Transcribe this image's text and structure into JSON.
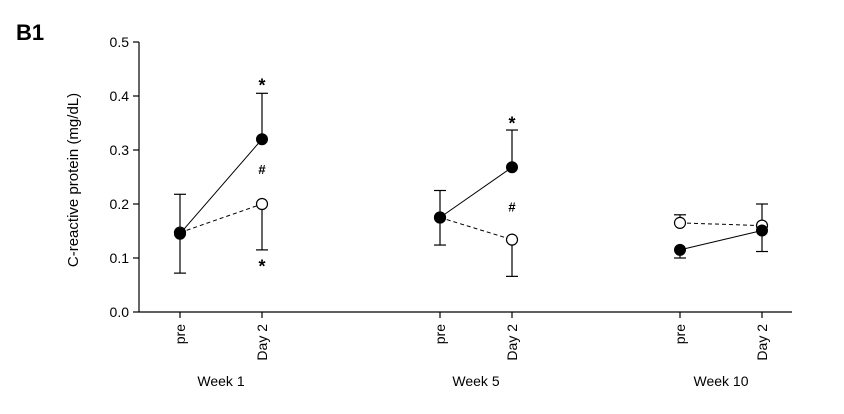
{
  "panel_label": "B1",
  "chart_data": {
    "type": "line",
    "ylabel": "C-reactive protein (mg/dL)",
    "ylim": [
      0.0,
      0.5
    ],
    "yticks": [
      "0.0",
      "0.1",
      "0.2",
      "0.3",
      "0.4",
      "0.5"
    ],
    "groups": [
      {
        "name": "Week 1",
        "x_labels": [
          "pre",
          "Day 2"
        ],
        "filled": {
          "values": [
            0.145,
            0.32
          ],
          "error_upper": [
            0.218,
            0.405
          ],
          "error_lower": [
            0.072,
            null
          ]
        },
        "open": {
          "values": [
            0.147,
            0.2
          ],
          "error_upper": [
            null,
            null
          ],
          "error_lower": [
            null,
            0.115
          ]
        },
        "annotations": [
          {
            "text": "*",
            "x_index": 1,
            "y": 0.425
          },
          {
            "text": "#",
            "x_index": 1,
            "y": 0.265
          },
          {
            "text": "*",
            "x_index": 1,
            "y": 0.09
          }
        ]
      },
      {
        "name": "Week 5",
        "x_labels": [
          "pre",
          "Day 2"
        ],
        "filled": {
          "values": [
            0.175,
            0.268
          ],
          "error_upper": [
            0.225,
            0.337
          ],
          "error_lower": [
            0.124,
            null
          ]
        },
        "open": {
          "values": [
            0.175,
            0.134
          ],
          "error_upper": [
            null,
            null
          ],
          "error_lower": [
            null,
            0.066
          ]
        },
        "annotations": [
          {
            "text": "*",
            "x_index": 1,
            "y": 0.355
          },
          {
            "text": "#",
            "x_index": 1,
            "y": 0.195
          }
        ]
      },
      {
        "name": "Week 10",
        "x_labels": [
          "pre",
          "Day 2"
        ],
        "filled": {
          "values": [
            0.115,
            0.151
          ],
          "error_upper": [
            null,
            0.2
          ],
          "error_lower": [
            0.1,
            0.112
          ]
        },
        "open": {
          "values": [
            0.165,
            0.16
          ],
          "error_upper": [
            0.18,
            null
          ],
          "error_lower": [
            null,
            null
          ]
        },
        "annotations": []
      }
    ]
  }
}
